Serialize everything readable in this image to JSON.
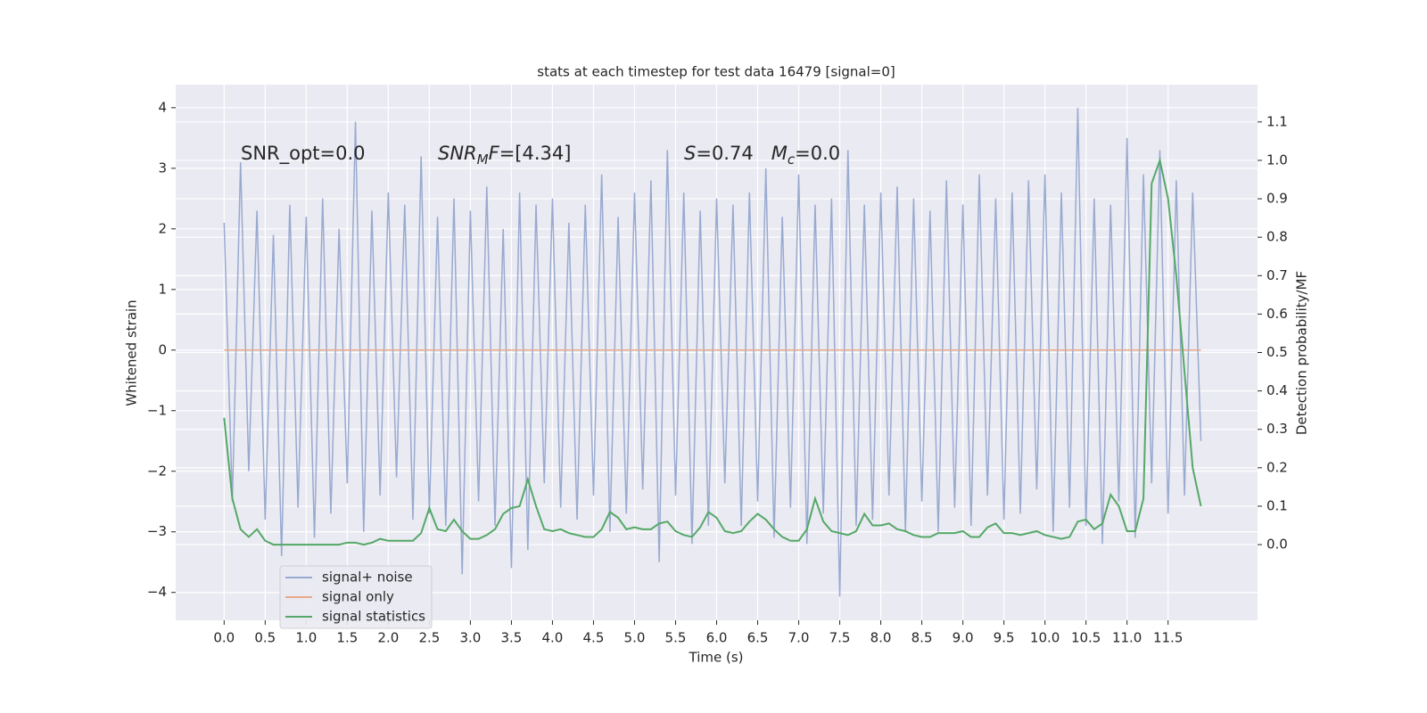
{
  "chart_data": {
    "type": "line",
    "title": "stats at each timestep for test data 16479 [signal=0]",
    "xlabel": "Time (s)",
    "ylabel": "Whitened strain",
    "y2label": "Detection probability/MF",
    "xlim": [
      -0.59,
      12.59
    ],
    "ylim": [
      -4.46,
      4.38
    ],
    "y2lim": [
      -0.197,
      1.197
    ],
    "xticks": [
      {
        "value": 0,
        "label": "0.0"
      },
      0.5,
      {
        "value": 1,
        "label": "1.0"
      },
      1.5,
      {
        "value": 2,
        "label": "2.0"
      },
      2.5,
      {
        "value": 3,
        "label": "3.0"
      },
      3.5,
      {
        "value": 4,
        "label": "4.0"
      },
      4.5,
      {
        "value": 5,
        "label": "5.0"
      },
      5.5,
      {
        "value": 6,
        "label": "6.0"
      },
      6.5,
      {
        "value": 7,
        "label": "7.0"
      },
      7.5,
      {
        "value": 8,
        "label": "8.0"
      },
      8.5,
      {
        "value": 9,
        "label": "9.0"
      },
      9.5,
      {
        "value": 10,
        "label": "10.0"
      },
      10.5,
      {
        "value": 11,
        "label": "11.0"
      },
      11.5
    ],
    "yticks": [
      {
        "value": -4,
        "label": "−4"
      },
      {
        "value": -3,
        "label": "−3"
      },
      {
        "value": -2,
        "label": "−2"
      },
      {
        "value": -1,
        "label": "−1"
      },
      0,
      1,
      2,
      3,
      4
    ],
    "y2ticks": [
      {
        "value": 0,
        "label": "0.0"
      },
      0.1,
      0.2,
      0.3,
      0.4,
      0.5,
      0.6,
      0.7,
      0.8,
      0.9,
      {
        "value": 1,
        "label": "1.0"
      },
      1.1
    ],
    "grid": true,
    "legend": "lower left",
    "annotations": [
      {
        "segments": [
          {
            "text": "SNR_opt=0.0",
            "style": "normal"
          }
        ]
      },
      {
        "segments": [
          {
            "text": "SNR",
            "style": "italic"
          },
          {
            "text": "M",
            "style": "italic-sub"
          },
          {
            "text": "F",
            "style": "italic"
          },
          {
            "text": "=[4.34]",
            "style": "normal"
          }
        ]
      },
      {
        "segments": [
          {
            "text": "S",
            "style": "italic"
          },
          {
            "text": "=0.74   ",
            "style": "normal"
          },
          {
            "text": "M",
            "style": "italic"
          },
          {
            "text": "c",
            "style": "italic-sub"
          },
          {
            "text": "=0.0",
            "style": "normal"
          }
        ]
      }
    ],
    "x": [
      0,
      0.1,
      0.2,
      0.3,
      0.4,
      0.5,
      0.6,
      0.7,
      0.8,
      0.9,
      1,
      1.1,
      1.2,
      1.3,
      1.4,
      1.5,
      1.6,
      1.7,
      1.8,
      1.9,
      2,
      2.1,
      2.2,
      2.3,
      2.4,
      2.5,
      2.6,
      2.7,
      2.8,
      2.9,
      3,
      3.1,
      3.2,
      3.3,
      3.4,
      3.5,
      3.6,
      3.7,
      3.8,
      3.9,
      4,
      4.1,
      4.2,
      4.3,
      4.4,
      4.5,
      4.6,
      4.7,
      4.8,
      4.9,
      5,
      5.1,
      5.2,
      5.3,
      5.4,
      5.5,
      5.6,
      5.7,
      5.8,
      5.9,
      6,
      6.1,
      6.2,
      6.3,
      6.4,
      6.5,
      6.6,
      6.7,
      6.8,
      6.9,
      7,
      7.1,
      7.2,
      7.3,
      7.4,
      7.5,
      7.6,
      7.7,
      7.8,
      7.9,
      8,
      8.1,
      8.2,
      8.3,
      8.4,
      8.5,
      8.6,
      8.7,
      8.8,
      8.9,
      9,
      9.1,
      9.2,
      9.3,
      9.4,
      9.5,
      9.6,
      9.7,
      9.8,
      9.9,
      10,
      10.1,
      10.2,
      10.3,
      10.4,
      10.5,
      10.6,
      10.7,
      10.8,
      10.9,
      11,
      11.1,
      11.2,
      11.3,
      11.4,
      11.5,
      11.6,
      11.7,
      11.8,
      11.9
    ],
    "series": [
      {
        "name": "signal+ noise",
        "color": "#99aad0",
        "axis": "y",
        "values": [
          2.1,
          -2.5,
          3.1,
          -2.0,
          2.3,
          -2.8,
          1.9,
          -3.4,
          2.4,
          -2.6,
          2.2,
          -3.1,
          2.5,
          -2.7,
          2.0,
          -2.2,
          3.77,
          -3.0,
          2.3,
          -2.4,
          2.6,
          -2.1,
          2.4,
          -2.8,
          3.2,
          -2.7,
          2.2,
          -2.9,
          2.5,
          -3.7,
          2.3,
          -2.5,
          2.7,
          -2.9,
          2.0,
          -3.6,
          2.6,
          -3.3,
          2.4,
          -2.2,
          2.5,
          -2.6,
          2.1,
          -2.8,
          2.4,
          -2.4,
          2.9,
          -3.0,
          2.2,
          -2.7,
          2.6,
          -2.3,
          2.8,
          -3.5,
          3.3,
          -2.4,
          2.6,
          -3.2,
          2.3,
          -2.9,
          2.5,
          -2.2,
          2.4,
          -2.9,
          2.6,
          -2.5,
          3.0,
          -3.1,
          2.2,
          -2.6,
          2.9,
          -3.2,
          2.4,
          -2.7,
          2.5,
          -4.07,
          3.3,
          -2.9,
          2.4,
          -2.8,
          2.6,
          -2.4,
          2.7,
          -3.0,
          2.5,
          -2.5,
          2.3,
          -3.0,
          2.8,
          -2.6,
          2.4,
          -2.9,
          2.9,
          -2.4,
          2.5,
          -2.8,
          2.6,
          -2.7,
          2.8,
          -2.3,
          2.9,
          -3.0,
          2.6,
          -2.6,
          4.0,
          -2.9,
          2.5,
          -3.2,
          2.4,
          -2.5,
          3.5,
          -3.1,
          2.9,
          -2.2,
          3.3,
          -2.7,
          2.8,
          -2.4,
          2.6,
          -1.5
        ]
      },
      {
        "name": "signal only",
        "color": "#e8a98a",
        "axis": "y",
        "values": [
          0,
          0,
          0,
          0,
          0,
          0,
          0,
          0,
          0,
          0,
          0,
          0,
          0,
          0,
          0,
          0,
          0,
          0,
          0,
          0,
          0,
          0,
          0,
          0,
          0,
          0,
          0,
          0,
          0,
          0,
          0,
          0,
          0,
          0,
          0,
          0,
          0,
          0,
          0,
          0,
          0,
          0,
          0,
          0,
          0,
          0,
          0,
          0,
          0,
          0,
          0,
          0,
          0,
          0,
          0,
          0,
          0,
          0,
          0,
          0,
          0,
          0,
          0,
          0,
          0,
          0,
          0,
          0,
          0,
          0,
          0,
          0,
          0,
          0,
          0,
          0,
          0,
          0,
          0,
          0,
          0,
          0,
          0,
          0,
          0,
          0,
          0,
          0,
          0,
          0,
          0,
          0,
          0,
          0,
          0,
          0,
          0,
          0,
          0,
          0,
          0,
          0,
          0,
          0,
          0,
          0,
          0,
          0,
          0,
          0,
          0,
          0,
          0,
          0,
          0,
          0,
          0,
          0,
          0,
          0
        ]
      },
      {
        "name": "signal statistics",
        "color": "#55a868",
        "axis": "y2",
        "values": [
          0.33,
          0.12,
          0.04,
          0.02,
          0.04,
          0.01,
          0.0,
          0.0,
          0.0,
          0.0,
          0.0,
          0.0,
          0.0,
          0.0,
          0.0,
          0.005,
          0.005,
          0.0,
          0.005,
          0.015,
          0.01,
          0.01,
          0.01,
          0.01,
          0.03,
          0.095,
          0.04,
          0.035,
          0.065,
          0.035,
          0.015,
          0.015,
          0.025,
          0.04,
          0.08,
          0.095,
          0.1,
          0.17,
          0.1,
          0.04,
          0.035,
          0.04,
          0.03,
          0.025,
          0.02,
          0.02,
          0.04,
          0.085,
          0.07,
          0.04,
          0.045,
          0.04,
          0.04,
          0.055,
          0.06,
          0.035,
          0.025,
          0.02,
          0.045,
          0.085,
          0.07,
          0.035,
          0.03,
          0.035,
          0.06,
          0.08,
          0.065,
          0.04,
          0.02,
          0.01,
          0.01,
          0.04,
          0.12,
          0.06,
          0.035,
          0.03,
          0.025,
          0.035,
          0.08,
          0.05,
          0.05,
          0.055,
          0.04,
          0.035,
          0.025,
          0.02,
          0.02,
          0.03,
          0.03,
          0.03,
          0.035,
          0.02,
          0.02,
          0.045,
          0.055,
          0.03,
          0.03,
          0.025,
          0.03,
          0.035,
          0.025,
          0.02,
          0.015,
          0.02,
          0.06,
          0.065,
          0.04,
          0.055,
          0.13,
          0.1,
          0.035,
          0.035,
          0.12,
          0.94,
          1.0,
          0.9,
          0.7,
          0.45,
          0.2,
          0.1
        ]
      }
    ]
  }
}
